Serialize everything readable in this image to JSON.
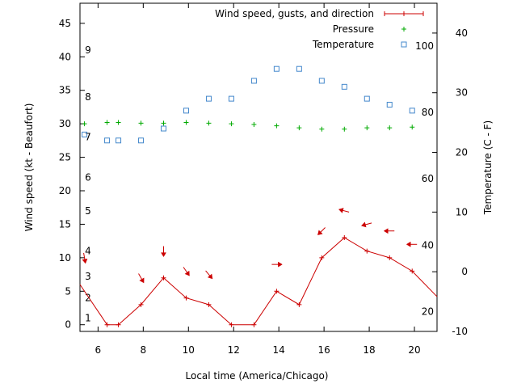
{
  "chart_data": {
    "type": "line",
    "xlabel": "Local time (America/Chicago)",
    "ylabel_left": "Wind speed (kt - Beaufort)",
    "ylabel_right": "Temperature (C - F)",
    "xlim": [
      5.2,
      21.0
    ],
    "ylim_left": [
      -1,
      48
    ],
    "ylim_right": [
      -10,
      45
    ],
    "x_ticks": [
      6,
      8,
      10,
      12,
      14,
      16,
      18,
      20
    ],
    "y_ticks_left": [
      0,
      5,
      10,
      15,
      20,
      25,
      30,
      35,
      40,
      45
    ],
    "y_ticks_right": [
      -10,
      0,
      10,
      20,
      30,
      40
    ],
    "beaufort_labels": [
      {
        "text": "1",
        "y": 1.0
      },
      {
        "text": "2",
        "y": 4.0
      },
      {
        "text": "3",
        "y": 7.2
      },
      {
        "text": "4",
        "y": 11.0
      },
      {
        "text": "5",
        "y": 17.0
      },
      {
        "text": "6",
        "y": 22.0
      },
      {
        "text": "7",
        "y": 28.0
      },
      {
        "text": "8",
        "y": 34.0
      },
      {
        "text": "9",
        "y": 41.0
      }
    ],
    "fahrenheit_labels": [
      {
        "text": "20",
        "y": -6.7
      },
      {
        "text": "40",
        "y": 4.4
      },
      {
        "text": "60",
        "y": 15.6
      },
      {
        "text": "80",
        "y": 26.7
      },
      {
        "text": "100",
        "y": 37.8
      }
    ],
    "legend": {
      "position": "top-right",
      "entries": [
        {
          "label": "Wind speed, gusts, and direction",
          "series": "wind"
        },
        {
          "label": "Pressure",
          "series": "pressure"
        },
        {
          "label": "Temperature",
          "series": "temperature"
        }
      ]
    },
    "series": [
      {
        "name": "Wind speed, gusts, and direction",
        "key": "wind",
        "axis": "left",
        "style": "line-plus",
        "color": "#cc0000",
        "x": [
          5.2,
          6.4,
          6.9,
          7.9,
          8.9,
          9.9,
          10.9,
          11.9,
          12.9,
          13.9,
          14.9,
          15.9,
          16.9,
          17.9,
          18.9,
          19.9,
          21.0
        ],
        "y": [
          6,
          0,
          0,
          3,
          7,
          4,
          3,
          0,
          0,
          5,
          3,
          10,
          13,
          11,
          10,
          8,
          4.2
        ]
      },
      {
        "name": "Pressure",
        "key": "pressure",
        "axis": "left",
        "style": "plus",
        "color": "#00aa00",
        "x": [
          5.4,
          6.4,
          6.9,
          7.9,
          8.9,
          9.9,
          10.9,
          11.9,
          12.9,
          13.9,
          14.9,
          15.9,
          16.9,
          17.9,
          18.9,
          19.9
        ],
        "y": [
          30.0,
          30.2,
          30.2,
          30.1,
          30.1,
          30.2,
          30.1,
          30.0,
          29.9,
          29.7,
          29.4,
          29.2,
          29.2,
          29.4,
          29.4,
          29.5
        ]
      },
      {
        "name": "Temperature",
        "key": "temperature",
        "axis": "right",
        "style": "square",
        "color": "#4488cc",
        "x": [
          5.4,
          6.4,
          6.9,
          7.9,
          8.9,
          9.9,
          10.9,
          11.9,
          12.9,
          13.9,
          14.9,
          15.9,
          16.9,
          17.9,
          18.9,
          19.9
        ],
        "y": [
          23,
          22,
          22,
          22,
          24,
          27,
          29,
          29,
          32,
          34,
          34,
          32,
          31,
          29,
          28,
          27
        ]
      }
    ],
    "wind_direction_arrows": {
      "color": "#cc0000",
      "items": [
        {
          "x": 5.4,
          "y": 10.0,
          "angle": 80
        },
        {
          "x": 7.9,
          "y": 7.0,
          "angle": 60
        },
        {
          "x": 8.9,
          "y": 11.0,
          "angle": 90
        },
        {
          "x": 9.9,
          "y": 8.0,
          "angle": 55
        },
        {
          "x": 10.9,
          "y": 7.5,
          "angle": 50
        },
        {
          "x": 13.9,
          "y": 9.0,
          "angle": 0
        },
        {
          "x": 15.9,
          "y": 14.0,
          "angle": 135
        },
        {
          "x": 16.9,
          "y": 17.0,
          "angle": 195
        },
        {
          "x": 17.9,
          "y": 15.0,
          "angle": 165
        },
        {
          "x": 18.9,
          "y": 14.0,
          "angle": 180
        },
        {
          "x": 19.9,
          "y": 12.0,
          "angle": 180
        }
      ]
    },
    "grid": false
  }
}
